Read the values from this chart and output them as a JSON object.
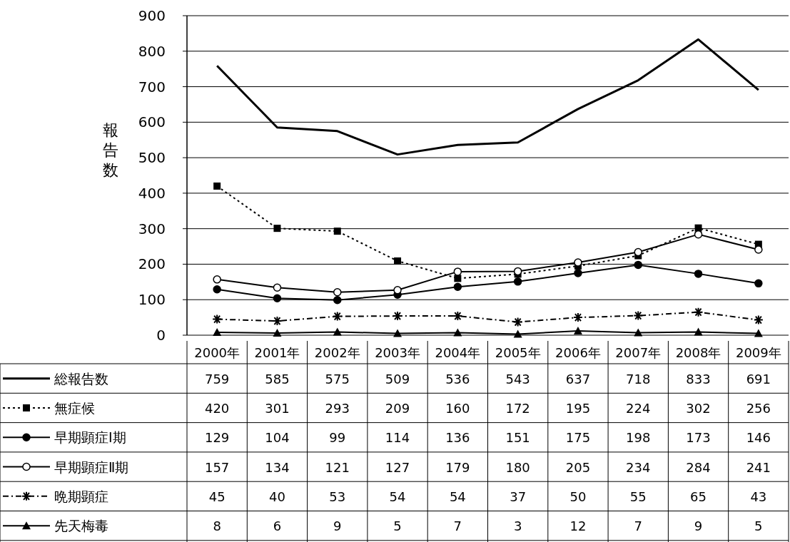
{
  "chart_data": {
    "type": "line",
    "ylabel": "報告数",
    "categories": [
      "2000年",
      "2001年",
      "2002年",
      "2003年",
      "2004年",
      "2005年",
      "2006年",
      "2007年",
      "2008年",
      "2009年"
    ],
    "ylim": [
      0,
      900
    ],
    "yticks": [
      0,
      100,
      200,
      300,
      400,
      500,
      600,
      700,
      800,
      900
    ],
    "grid": "y",
    "data_labels": true,
    "legend": "left",
    "series": [
      {
        "name": "総報告数",
        "color": "#000000",
        "marker": "none",
        "line_style": "solid",
        "values": [
          759,
          585,
          575,
          509,
          536,
          543,
          637,
          718,
          833,
          691
        ]
      },
      {
        "name": "無症候",
        "color": "#000000",
        "marker": "square",
        "line_style": "dotted",
        "values": [
          420,
          301,
          293,
          209,
          160,
          172,
          195,
          224,
          302,
          256
        ]
      },
      {
        "name": "早期顕症Ⅰ期",
        "color": "#000000",
        "marker": "circle",
        "line_style": "solid",
        "values": [
          129,
          104,
          99,
          114,
          136,
          151,
          175,
          198,
          173,
          146
        ]
      },
      {
        "name": "早期顕症Ⅱ期",
        "color": "#000000",
        "marker": "circle",
        "line_style": "solid",
        "values": [
          157,
          134,
          121,
          127,
          179,
          180,
          205,
          234,
          284,
          241
        ]
      },
      {
        "name": "晩期顕症",
        "color": "#000000",
        "marker": "cross",
        "line_style": "dashed",
        "values": [
          45,
          40,
          53,
          54,
          54,
          37,
          50,
          55,
          65,
          43
        ]
      },
      {
        "name": "先天梅毒",
        "color": "#000000",
        "marker": "triangle",
        "line_style": "solid",
        "values": [
          8,
          6,
          9,
          5,
          7,
          3,
          12,
          7,
          9,
          5
        ]
      }
    ]
  }
}
